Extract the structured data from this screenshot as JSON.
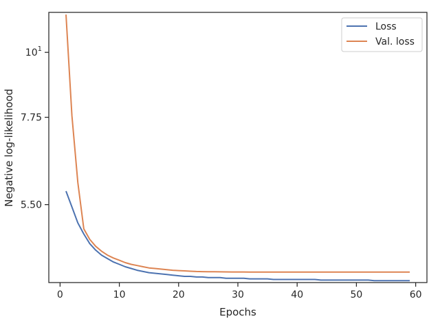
{
  "chart_data": {
    "type": "line",
    "title": "",
    "xlabel": "Epochs",
    "ylabel": "Negative log-likelihood",
    "xlim": [
      -1.9,
      61.9
    ],
    "ylim": [
      4.05,
      11.7
    ],
    "x_ticks": [
      {
        "value": 0,
        "label": "0"
      },
      {
        "value": 10,
        "label": "10"
      },
      {
        "value": 20,
        "label": "20"
      },
      {
        "value": 30,
        "label": "30"
      },
      {
        "value": 40,
        "label": "40"
      },
      {
        "value": 50,
        "label": "50"
      },
      {
        "value": 60,
        "label": "60"
      }
    ],
    "y_ticks": [
      {
        "value": 5.5,
        "label": "5.50"
      },
      {
        "value": 7.75,
        "label": "7.75"
      },
      {
        "value": 10,
        "label": "10",
        "sup": "1"
      }
    ],
    "grid": false,
    "legend": "top-right",
    "colors": {
      "Loss": "#4c72b0",
      "Val. loss": "#dd8452"
    },
    "x": [
      1,
      2,
      3,
      4,
      5,
      6,
      7,
      8,
      9,
      10,
      11,
      12,
      13,
      14,
      15,
      16,
      17,
      18,
      19,
      20,
      21,
      22,
      23,
      24,
      25,
      26,
      27,
      28,
      29,
      30,
      31,
      32,
      33,
      34,
      35,
      36,
      37,
      38,
      39,
      40,
      41,
      42,
      43,
      44,
      45,
      46,
      47,
      48,
      49,
      50,
      51,
      52,
      53,
      54,
      55,
      56,
      57,
      58,
      59
    ],
    "series": [
      {
        "name": "Loss",
        "values": [
          5.8,
          5.45,
          5.12,
          4.9,
          4.72,
          4.6,
          4.51,
          4.45,
          4.39,
          4.35,
          4.31,
          4.28,
          4.25,
          4.23,
          4.21,
          4.2,
          4.19,
          4.18,
          4.17,
          4.16,
          4.15,
          4.15,
          4.14,
          4.14,
          4.13,
          4.13,
          4.13,
          4.12,
          4.12,
          4.12,
          4.12,
          4.11,
          4.11,
          4.11,
          4.11,
          4.1,
          4.1,
          4.1,
          4.1,
          4.1,
          4.1,
          4.1,
          4.1,
          4.09,
          4.09,
          4.09,
          4.09,
          4.09,
          4.09,
          4.09,
          4.09,
          4.09,
          4.08,
          4.08,
          4.08,
          4.08,
          4.08,
          4.08,
          4.08
        ]
      },
      {
        "name": "Val. loss",
        "values": [
          11.6,
          7.8,
          6.0,
          5.0,
          4.8,
          4.67,
          4.58,
          4.51,
          4.46,
          4.42,
          4.38,
          4.35,
          4.33,
          4.31,
          4.29,
          4.28,
          4.27,
          4.26,
          4.25,
          4.245,
          4.24,
          4.235,
          4.23,
          4.228,
          4.226,
          4.225,
          4.224,
          4.223,
          4.222,
          4.222,
          4.222,
          4.221,
          4.221,
          4.22,
          4.22,
          4.22,
          4.22,
          4.22,
          4.22,
          4.22,
          4.22,
          4.22,
          4.22,
          4.22,
          4.22,
          4.22,
          4.22,
          4.22,
          4.22,
          4.22,
          4.22,
          4.22,
          4.22,
          4.22,
          4.22,
          4.22,
          4.22,
          4.22,
          4.22
        ]
      }
    ]
  }
}
